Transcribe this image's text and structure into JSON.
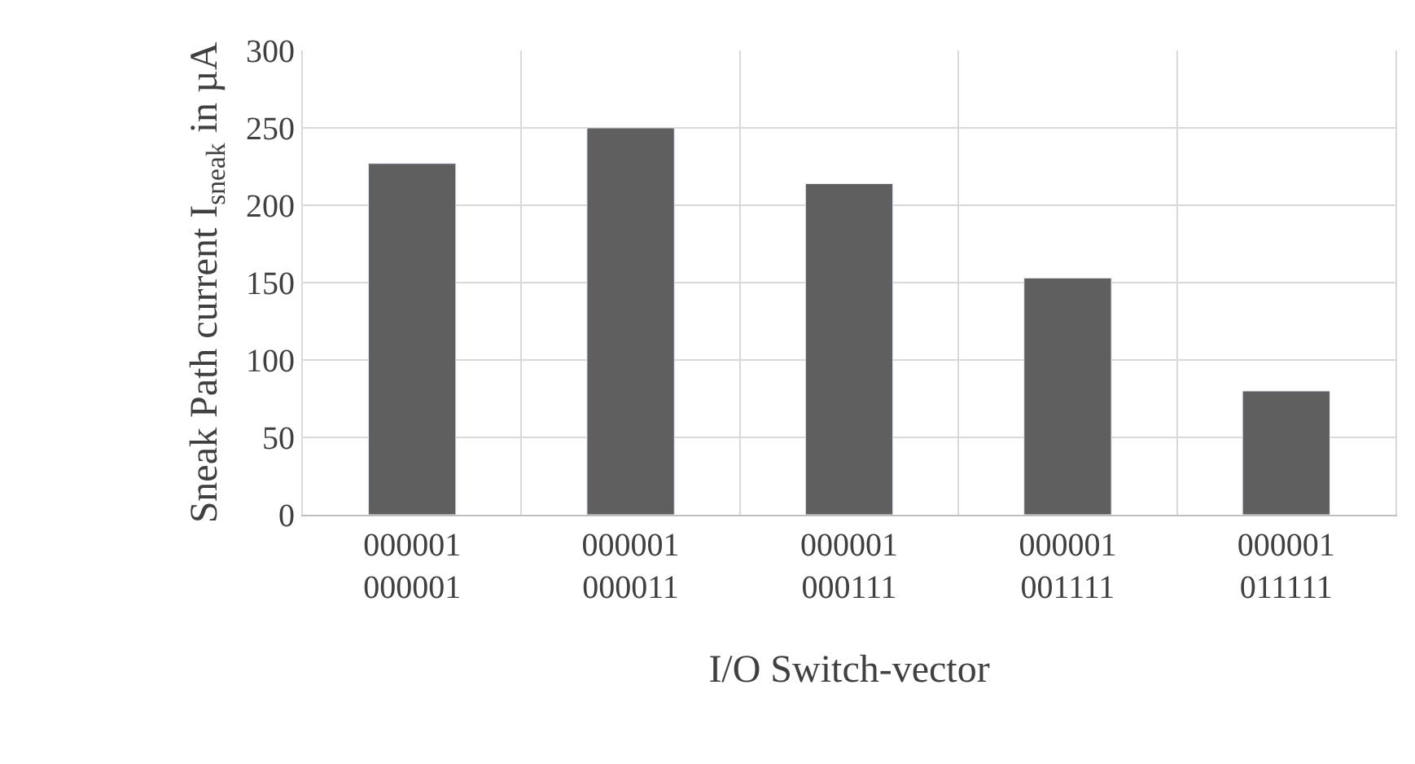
{
  "chart_data": {
    "type": "bar",
    "xlabel": "I/O Switch-vector",
    "ylabel": "Sneak Path current I$_{sneak}$ in µA",
    "categories": [
      "000001\n000001",
      "000001\n000011",
      "000001\n000111",
      "000001\n001111",
      "000001\n011111"
    ],
    "values": [
      227,
      250,
      214,
      153,
      80
    ],
    "color": "#5f5f5f",
    "ylim": [
      0,
      300
    ],
    "yticks": [
      0,
      50,
      100,
      150,
      200,
      250,
      300
    ],
    "grid": true
  }
}
